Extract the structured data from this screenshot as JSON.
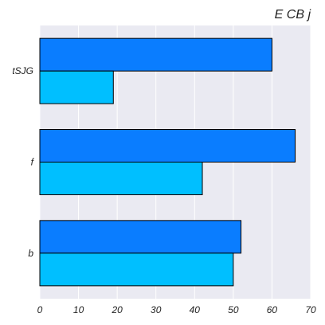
{
  "chart_data": {
    "type": "bar",
    "orientation": "horizontal",
    "title": "E CB j",
    "categories": [
      "tSJG",
      "f",
      "b"
    ],
    "series": [
      {
        "values": [
          60,
          66,
          52
        ],
        "color": "#0a7dff"
      },
      {
        "values": [
          19,
          42,
          50
        ],
        "color": "#00bfff"
      }
    ],
    "xlim": [
      0,
      70
    ],
    "xticks": [
      "0",
      "10",
      "20",
      "30",
      "40",
      "50",
      "60",
      "70"
    ],
    "grid": true,
    "plot_background": "#eaeaf2",
    "grid_color": "#ffffff"
  }
}
